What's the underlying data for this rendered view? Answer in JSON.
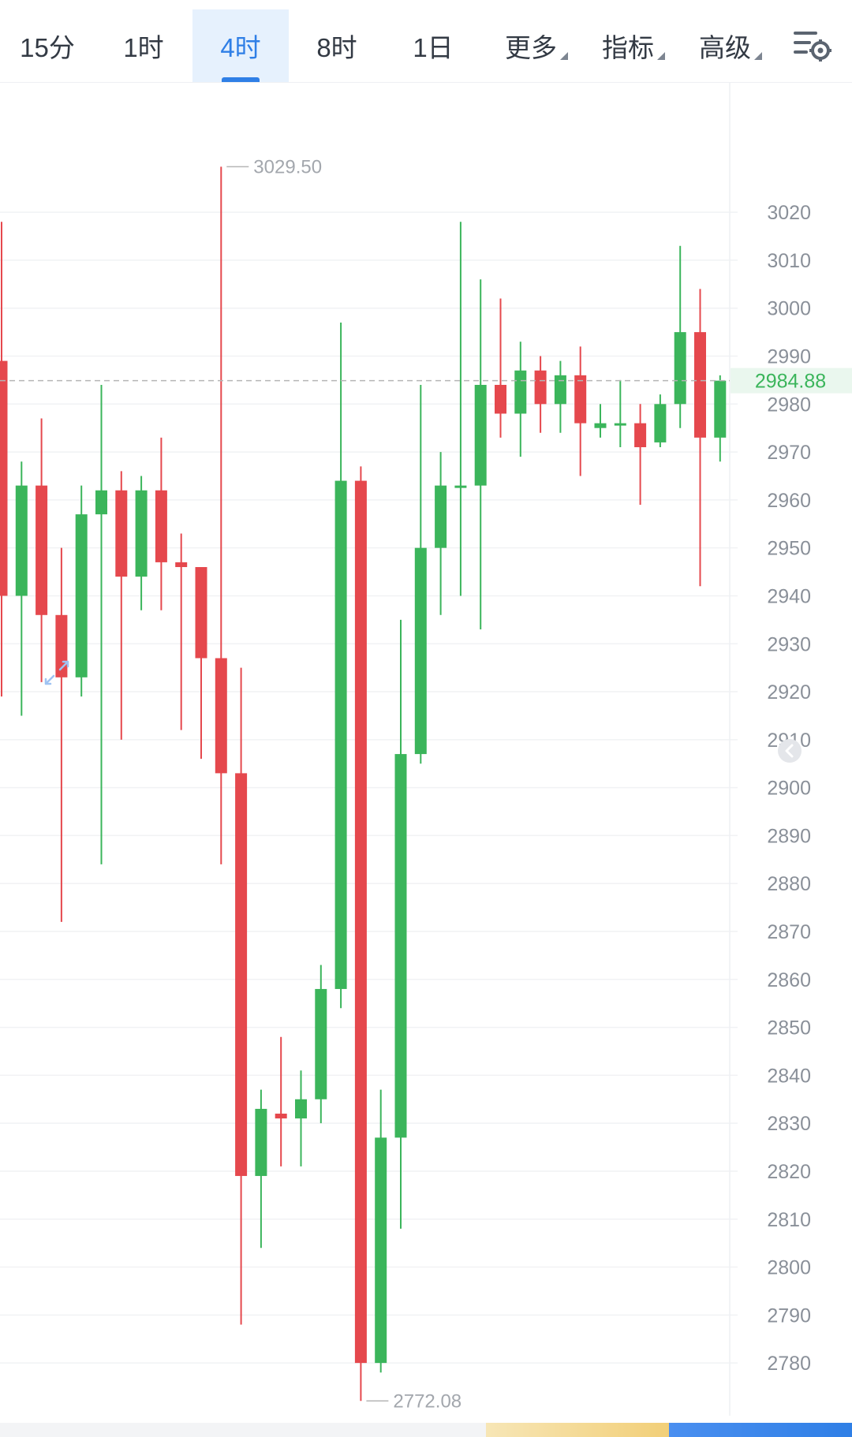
{
  "toolbar": {
    "tabs": [
      {
        "label": "15分"
      },
      {
        "label": "1时"
      },
      {
        "label": "4时"
      },
      {
        "label": "8时"
      },
      {
        "label": "1日"
      }
    ],
    "active_tab": "4时",
    "menus": [
      {
        "label": "更多"
      },
      {
        "label": "指标"
      },
      {
        "label": "高级"
      }
    ],
    "settings_icon": "chart-settings-icon",
    "accent_color": "#2f7fe6"
  },
  "chart_data": {
    "type": "candlestick",
    "ylim": [
      2769,
      3047
    ],
    "y_ticks": [
      "3020",
      "3010",
      "3000",
      "2990",
      "2980",
      "2970",
      "2960",
      "2950",
      "2940",
      "2930",
      "2920",
      "2910",
      "2900",
      "2890",
      "2880",
      "2870",
      "2860",
      "2850",
      "2840",
      "2830",
      "2820",
      "2810",
      "2800",
      "2790",
      "2780"
    ],
    "current_price": "2984.88",
    "high_label": "3029.50",
    "low_label": "2772.08",
    "colors": {
      "up": "#3bb55b",
      "down": "#e5484d",
      "price_line": "#b5b5b5",
      "price_label": "#3bb55b"
    },
    "candles": [
      {
        "open": 2989,
        "high": 3018,
        "low": 2919,
        "close": 2940
      },
      {
        "open": 2940,
        "high": 2968,
        "low": 2915,
        "close": 2963
      },
      {
        "open": 2963,
        "high": 2977,
        "low": 2922,
        "close": 2936
      },
      {
        "open": 2936,
        "high": 2950,
        "low": 2872,
        "close": 2923
      },
      {
        "open": 2923,
        "high": 2963,
        "low": 2919,
        "close": 2957
      },
      {
        "open": 2957,
        "high": 2984,
        "low": 2884,
        "close": 2962
      },
      {
        "open": 2962,
        "high": 2966,
        "low": 2910,
        "close": 2944
      },
      {
        "open": 2944,
        "high": 2965,
        "low": 2937,
        "close": 2962
      },
      {
        "open": 2962,
        "high": 2973,
        "low": 2937,
        "close": 2947
      },
      {
        "open": 2947,
        "high": 2953,
        "low": 2912,
        "close": 2946
      },
      {
        "open": 2946,
        "high": 2946,
        "low": 2906,
        "close": 2927
      },
      {
        "open": 2927,
        "high": 3029.5,
        "low": 2884,
        "close": 2903
      },
      {
        "open": 2903,
        "high": 2925,
        "low": 2788,
        "close": 2819
      },
      {
        "open": 2819,
        "high": 2837,
        "low": 2804,
        "close": 2833
      },
      {
        "open": 2832,
        "high": 2848,
        "low": 2821,
        "close": 2831
      },
      {
        "open": 2831,
        "high": 2841,
        "low": 2821,
        "close": 2835
      },
      {
        "open": 2835,
        "high": 2863,
        "low": 2830,
        "close": 2858
      },
      {
        "open": 2858,
        "high": 2997,
        "low": 2854,
        "close": 2964
      },
      {
        "open": 2964,
        "high": 2967,
        "low": 2772.08,
        "close": 2780
      },
      {
        "open": 2780,
        "high": 2837,
        "low": 2778,
        "close": 2827
      },
      {
        "open": 2827,
        "high": 2935,
        "low": 2808,
        "close": 2907
      },
      {
        "open": 2907,
        "high": 2984,
        "low": 2905,
        "close": 2950
      },
      {
        "open": 2950,
        "high": 2970,
        "low": 2936,
        "close": 2963
      },
      {
        "open": 2963,
        "high": 3018,
        "low": 2940,
        "close": 2963
      },
      {
        "open": 2963,
        "high": 3006,
        "low": 2933,
        "close": 2984
      },
      {
        "open": 2984,
        "high": 3002,
        "low": 2973,
        "close": 2978
      },
      {
        "open": 2978,
        "high": 2993,
        "low": 2969,
        "close": 2987
      },
      {
        "open": 2987,
        "high": 2990,
        "low": 2974,
        "close": 2980
      },
      {
        "open": 2980,
        "high": 2989,
        "low": 2974,
        "close": 2986
      },
      {
        "open": 2986,
        "high": 2992,
        "low": 2965,
        "close": 2976
      },
      {
        "open": 2975,
        "high": 2980,
        "low": 2973,
        "close": 2976
      },
      {
        "open": 2976,
        "high": 2985,
        "low": 2971,
        "close": 2976
      },
      {
        "open": 2976,
        "high": 2980,
        "low": 2959,
        "close": 2971
      },
      {
        "open": 2972,
        "high": 2982,
        "low": 2971,
        "close": 2980
      },
      {
        "open": 2980,
        "high": 3013,
        "low": 2975,
        "close": 2995
      },
      {
        "open": 2995,
        "high": 3004,
        "low": 2942,
        "close": 2973
      },
      {
        "open": 2973,
        "high": 2986,
        "low": 2968,
        "close": 2984.88
      }
    ]
  }
}
